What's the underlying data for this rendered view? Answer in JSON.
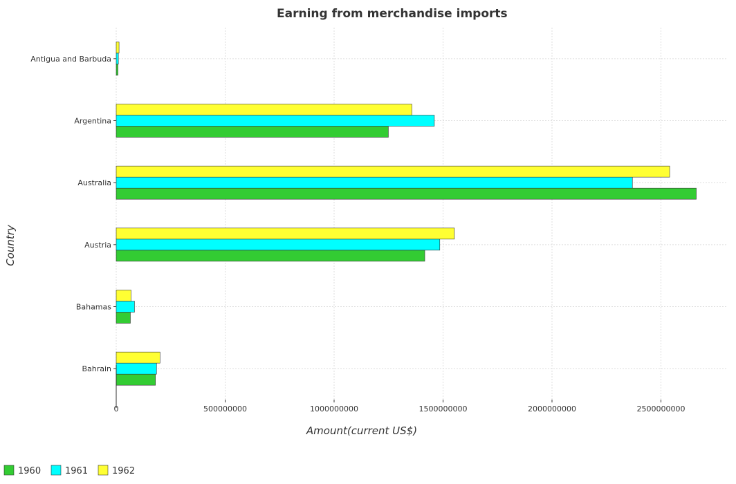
{
  "chart_data": {
    "type": "bar",
    "orientation": "horizontal",
    "title": "Earning from merchandise imports",
    "xlabel": "Amount(current US$)",
    "ylabel": "Country",
    "xlim": [
      0,
      2800000000
    ],
    "xticks": [
      0,
      500000000,
      1000000000,
      1500000000,
      2000000000,
      2500000000
    ],
    "xtick_labels": [
      "0",
      "500000000",
      "1000000000",
      "1500000000",
      "2000000000",
      "2500000000"
    ],
    "categories": [
      "Antigua and Barbuda",
      "Argentina",
      "Australia",
      "Austria",
      "Bahamas",
      "Bahrain"
    ],
    "series": [
      {
        "name": "1960",
        "color": "#33cc33",
        "values": [
          8000000,
          1249000000,
          2662000000,
          1416000000,
          65000000,
          180000000
        ]
      },
      {
        "name": "1961",
        "color": "#00ffff",
        "values": [
          10000000,
          1460000000,
          2369000000,
          1485000000,
          84000000,
          185000000
        ]
      },
      {
        "name": "1962",
        "color": "#ffff33",
        "values": [
          13000000,
          1357000000,
          2540000000,
          1552000000,
          68000000,
          201000000
        ]
      }
    ],
    "grid": true,
    "legend_position": "bottom-left"
  }
}
